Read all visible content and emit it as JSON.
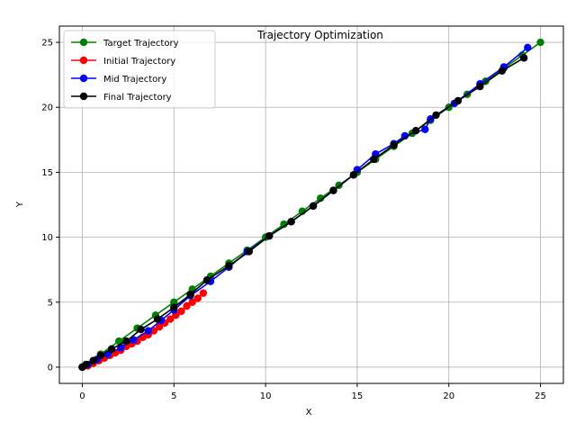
{
  "chart_data": {
    "type": "line",
    "title": "Trajectory Optimization",
    "xlabel": "X",
    "ylabel": "Y",
    "xlim": [
      -1.25,
      26.25
    ],
    "ylim": [
      -1.25,
      26.25
    ],
    "xticks": [
      0,
      5,
      10,
      15,
      20,
      25
    ],
    "yticks": [
      0,
      5,
      10,
      15,
      20,
      25
    ],
    "grid": true,
    "legend_position": "top-left",
    "series": [
      {
        "name": "Target Trajectory",
        "color": "#008000",
        "marker": "circle",
        "x": [
          0,
          1,
          2,
          3,
          4,
          5,
          6,
          7,
          8,
          9,
          10,
          11,
          12,
          13,
          14,
          15,
          16,
          17,
          18,
          19,
          20,
          21,
          22,
          23,
          24,
          25
        ],
        "y": [
          0,
          1,
          2,
          3,
          4,
          5,
          6,
          7,
          8,
          9,
          10,
          11,
          12,
          13,
          14,
          15,
          16,
          17,
          18,
          19,
          20,
          21,
          22,
          23,
          24,
          25
        ]
      },
      {
        "name": "Initial Trajectory",
        "color": "#ff0000",
        "marker": "circle",
        "x": [
          0,
          0.3,
          0.6,
          0.9,
          1.2,
          1.5,
          1.8,
          2.1,
          2.4,
          2.7,
          3.0,
          3.3,
          3.6,
          3.9,
          4.2,
          4.5,
          4.8,
          5.1,
          5.4,
          5.7,
          6.0,
          6.3,
          6.6
        ],
        "y": [
          0,
          0.1,
          0.3,
          0.5,
          0.7,
          0.9,
          1.1,
          1.3,
          1.6,
          1.8,
          2.0,
          2.3,
          2.5,
          2.8,
          3.1,
          3.4,
          3.7,
          4.0,
          4.3,
          4.7,
          5.0,
          5.3,
          5.7
        ]
      },
      {
        "name": "Mid Trajectory",
        "color": "#0000ff",
        "marker": "circle",
        "x": [
          0,
          0.3,
          0.8,
          1.4,
          2.1,
          2.8,
          3.6,
          4.3,
          5.0,
          5.9,
          7.0,
          8.0,
          9.0,
          10.2,
          11.4,
          12.6,
          13.7,
          14.8,
          15.0,
          16.0,
          17.0,
          17.6,
          18.7,
          19.0,
          20.3,
          21.7,
          23.0,
          24.3
        ],
        "y": [
          0,
          0.2,
          0.6,
          1.0,
          1.5,
          2.1,
          2.8,
          3.6,
          4.4,
          5.5,
          6.6,
          7.7,
          8.9,
          10.1,
          11.2,
          12.4,
          13.6,
          14.8,
          15.2,
          16.4,
          17.2,
          17.8,
          18.3,
          19.1,
          20.3,
          21.8,
          23.1,
          24.6
        ]
      },
      {
        "name": "Final Trajectory",
        "color": "#000000",
        "marker": "circle",
        "x": [
          0,
          0.2,
          0.6,
          1.0,
          1.6,
          2.4,
          3.2,
          4.1,
          5.0,
          5.9,
          6.8,
          8.0,
          9.1,
          10.2,
          11.4,
          12.6,
          13.7,
          14.8,
          15.9,
          17.0,
          18.2,
          19.3,
          20.5,
          21.7,
          22.9,
          24.1
        ],
        "y": [
          0,
          0.2,
          0.5,
          0.9,
          1.4,
          2.0,
          2.9,
          3.7,
          4.6,
          5.6,
          6.7,
          7.8,
          8.9,
          10.1,
          11.2,
          12.4,
          13.6,
          14.8,
          16.0,
          17.1,
          18.2,
          19.4,
          20.5,
          21.6,
          22.8,
          23.8
        ]
      }
    ]
  }
}
